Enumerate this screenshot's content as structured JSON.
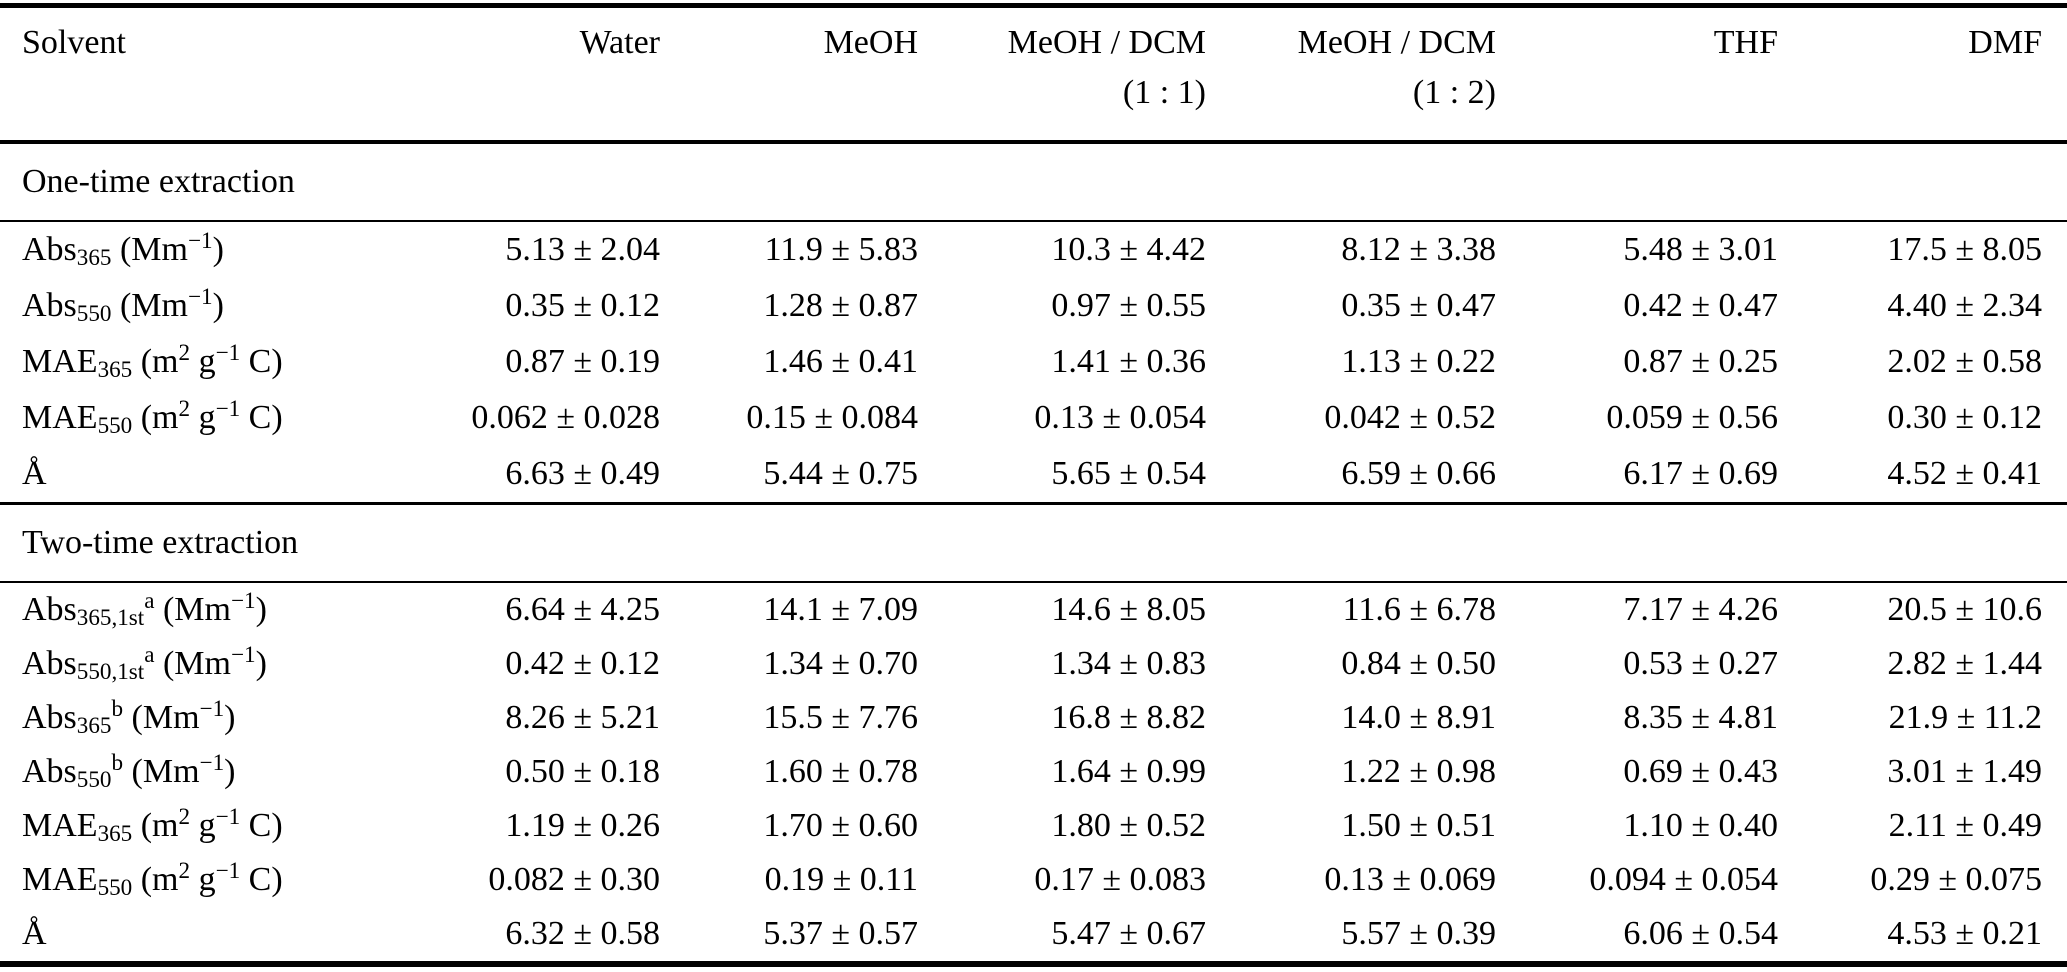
{
  "table": {
    "header": {
      "col0": "Solvent",
      "cols": [
        {
          "line1": "Water",
          "line2": ""
        },
        {
          "line1": "MeOH",
          "line2": ""
        },
        {
          "line1": "MeOH / DCM",
          "line2": "(1 : 1)"
        },
        {
          "line1": "MeOH / DCM",
          "line2": "(1 : 2)"
        },
        {
          "line1": "THF",
          "line2": ""
        },
        {
          "line1": "DMF",
          "line2": ""
        }
      ]
    },
    "sections": [
      {
        "title": "One-time extraction",
        "rows": [
          {
            "label_parts": [
              [
                "Abs",
                "n"
              ],
              [
                "365",
                "sub"
              ],
              [
                " (Mm",
                "n"
              ],
              [
                "−1",
                "sup"
              ],
              [
                ")",
                "n"
              ]
            ],
            "values": [
              "5.13 ± 2.04",
              "11.9 ± 5.83",
              "10.3 ± 4.42",
              "8.12 ± 3.38",
              "5.48 ± 3.01",
              "17.5 ± 8.05"
            ]
          },
          {
            "label_parts": [
              [
                "Abs",
                "n"
              ],
              [
                "550",
                "sub"
              ],
              [
                " (Mm",
                "n"
              ],
              [
                "−1",
                "sup"
              ],
              [
                ")",
                "n"
              ]
            ],
            "values": [
              "0.35 ± 0.12",
              "1.28 ± 0.87",
              "0.97 ± 0.55",
              "0.35 ± 0.47",
              "0.42 ± 0.47",
              "4.40 ± 2.34"
            ]
          },
          {
            "label_parts": [
              [
                "MAE",
                "n"
              ],
              [
                "365",
                "sub"
              ],
              [
                " (m",
                "n"
              ],
              [
                "2",
                "sup"
              ],
              [
                " g",
                "n"
              ],
              [
                "−1",
                "sup"
              ],
              [
                " C)",
                "n"
              ]
            ],
            "values": [
              "0.87 ± 0.19",
              "1.46 ± 0.41",
              "1.41 ± 0.36",
              "1.13 ± 0.22",
              "0.87 ± 0.25",
              "2.02 ± 0.58"
            ]
          },
          {
            "label_parts": [
              [
                "MAE",
                "n"
              ],
              [
                "550",
                "sub"
              ],
              [
                " (m",
                "n"
              ],
              [
                "2",
                "sup"
              ],
              [
                " g",
                "n"
              ],
              [
                "−1",
                "sup"
              ],
              [
                " C)",
                "n"
              ]
            ],
            "values": [
              "0.062 ± 0.028",
              "0.15 ± 0.084",
              "0.13 ± 0.054",
              "0.042 ± 0.52",
              "0.059 ± 0.56",
              "0.30 ± 0.12"
            ]
          },
          {
            "label_parts": [
              [
                "Å",
                "n"
              ]
            ],
            "values": [
              "6.63 ± 0.49",
              "5.44 ± 0.75",
              "5.65 ± 0.54",
              "6.59 ± 0.66",
              "6.17 ± 0.69",
              "4.52 ± 0.41"
            ]
          }
        ]
      },
      {
        "title": "Two-time extraction",
        "rows": [
          {
            "label_parts": [
              [
                "Abs",
                "n"
              ],
              [
                "365,1st",
                "sub"
              ],
              [
                "a",
                "sup"
              ],
              [
                " (Mm",
                "n"
              ],
              [
                "−1",
                "sup"
              ],
              [
                ")",
                "n"
              ]
            ],
            "values": [
              "6.64 ± 4.25",
              "14.1 ± 7.09",
              "14.6 ± 8.05",
              "11.6 ± 6.78",
              "7.17 ± 4.26",
              "20.5 ± 10.6"
            ]
          },
          {
            "label_parts": [
              [
                "Abs",
                "n"
              ],
              [
                "550,1st",
                "sub"
              ],
              [
                "a",
                "sup"
              ],
              [
                " (Mm",
                "n"
              ],
              [
                "−1",
                "sup"
              ],
              [
                ")",
                "n"
              ]
            ],
            "values": [
              "0.42 ± 0.12",
              "1.34 ± 0.70",
              "1.34 ± 0.83",
              "0.84 ± 0.50",
              "0.53 ± 0.27",
              "2.82 ± 1.44"
            ]
          },
          {
            "label_parts": [
              [
                "Abs",
                "n"
              ],
              [
                "365",
                "sub"
              ],
              [
                "b",
                "sup"
              ],
              [
                " (Mm",
                "n"
              ],
              [
                "−1",
                "sup"
              ],
              [
                ")",
                "n"
              ]
            ],
            "values": [
              "8.26 ± 5.21",
              "15.5 ± 7.76",
              "16.8 ± 8.82",
              "14.0 ± 8.91",
              "8.35 ± 4.81",
              "21.9 ± 11.2"
            ]
          },
          {
            "label_parts": [
              [
                "Abs",
                "n"
              ],
              [
                "550",
                "sub"
              ],
              [
                "b",
                "sup"
              ],
              [
                " (Mm",
                "n"
              ],
              [
                "−1",
                "sup"
              ],
              [
                ")",
                "n"
              ]
            ],
            "values": [
              "0.50 ± 0.18",
              "1.60 ± 0.78",
              "1.64 ± 0.99",
              "1.22 ± 0.98",
              "0.69 ± 0.43",
              "3.01 ± 1.49"
            ]
          },
          {
            "label_parts": [
              [
                "MAE",
                "n"
              ],
              [
                "365",
                "sub"
              ],
              [
                " (m",
                "n"
              ],
              [
                "2",
                "sup"
              ],
              [
                " g",
                "n"
              ],
              [
                "−1",
                "sup"
              ],
              [
                " C)",
                "n"
              ]
            ],
            "values": [
              "1.19 ± 0.26",
              "1.70 ± 0.60",
              "1.80 ± 0.52",
              "1.50 ± 0.51",
              "1.10 ± 0.40",
              "2.11 ± 0.49"
            ]
          },
          {
            "label_parts": [
              [
                "MAE",
                "n"
              ],
              [
                "550",
                "sub"
              ],
              [
                " (m",
                "n"
              ],
              [
                "2",
                "sup"
              ],
              [
                " g",
                "n"
              ],
              [
                "−1",
                "sup"
              ],
              [
                " C)",
                "n"
              ]
            ],
            "values": [
              "0.082 ± 0.30",
              "0.19 ± 0.11",
              "0.17 ± 0.083",
              "0.13 ± 0.069",
              "0.094 ± 0.054",
              "0.29 ± 0.075"
            ]
          },
          {
            "label_parts": [
              [
                "Å",
                "n"
              ]
            ],
            "values": [
              "6.32 ± 0.58",
              "5.37 ± 0.57",
              "5.47 ± 0.67",
              "5.57 ± 0.39",
              "6.06 ± 0.54",
              "4.53 ± 0.21"
            ]
          }
        ]
      }
    ]
  }
}
